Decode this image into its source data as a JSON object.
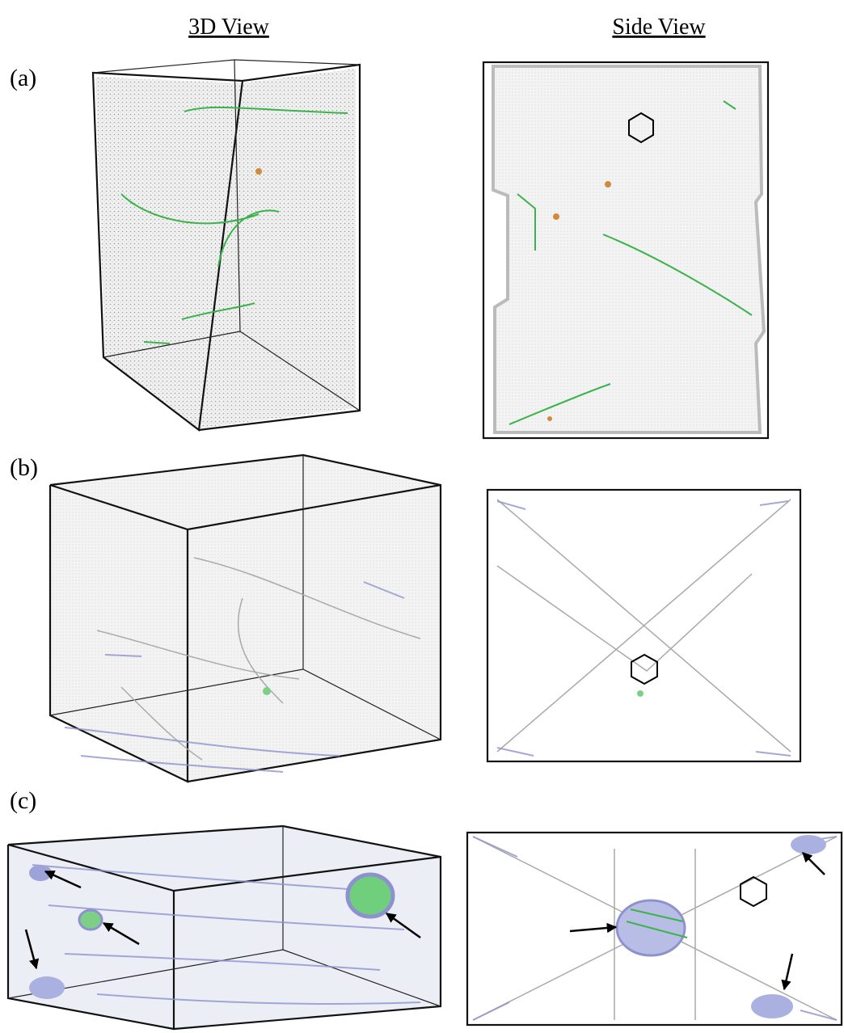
{
  "headers": [
    "3D View",
    "Side View"
  ],
  "panels": [
    {
      "label": "(a)"
    },
    {
      "label": "(b)"
    },
    {
      "label": "(c)"
    }
  ]
}
